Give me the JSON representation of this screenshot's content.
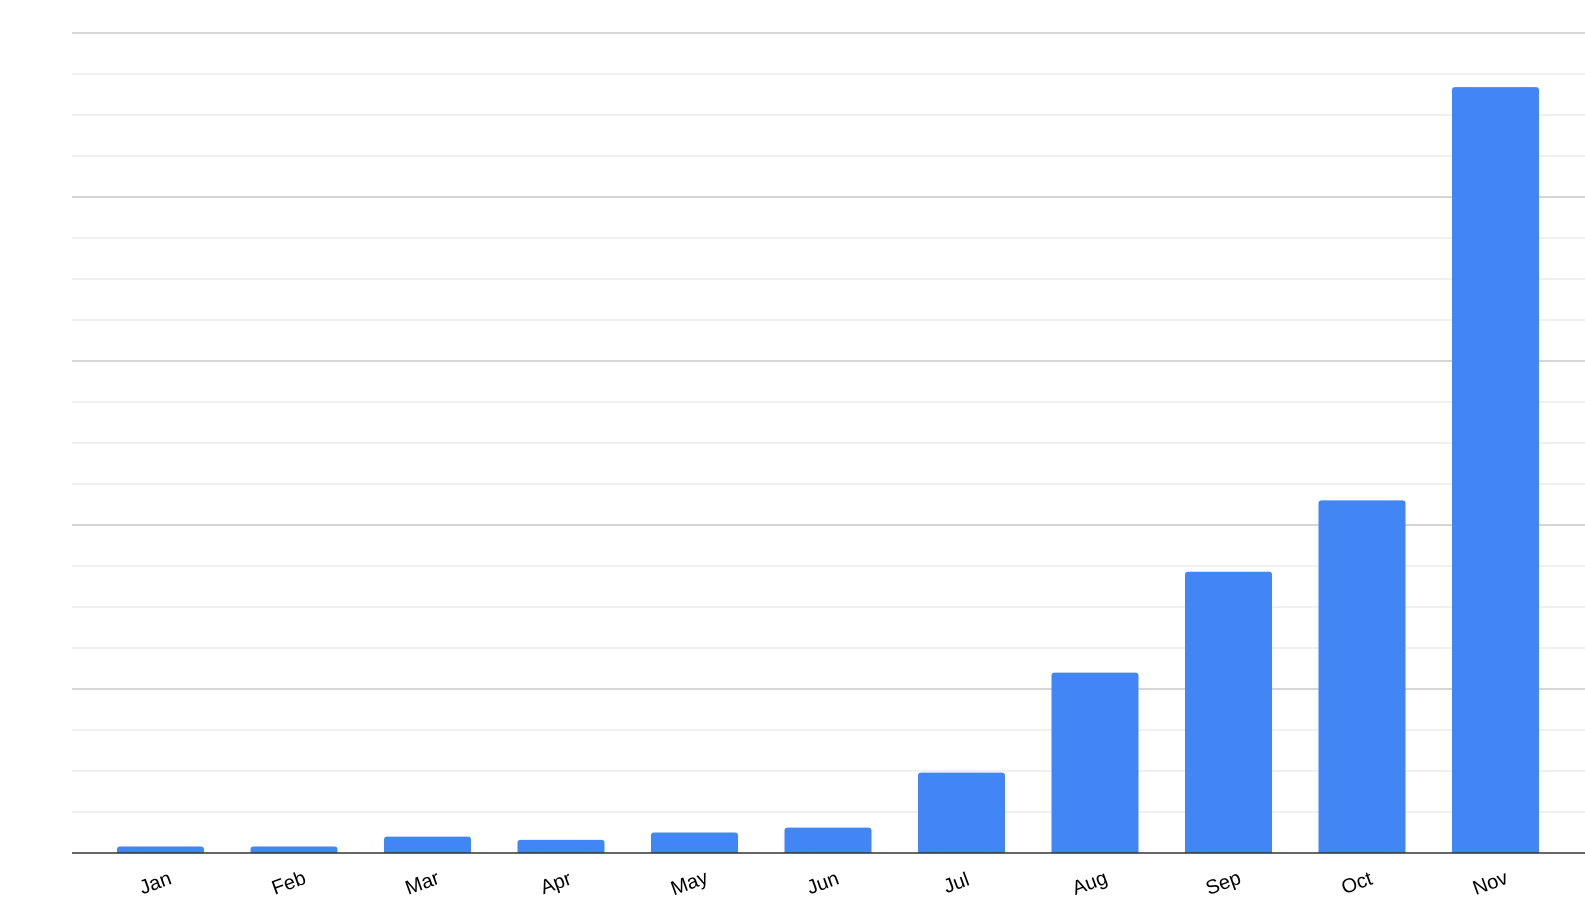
{
  "chart_data": {
    "type": "bar",
    "title": "",
    "xlabel": "",
    "ylabel": "",
    "categories": [
      "Jan",
      "Feb",
      "Mar",
      "Apr",
      "May",
      "Jun",
      "Jul",
      "Aug",
      "Sep",
      "Oct",
      "Nov"
    ],
    "values": [
      0.8,
      0.8,
      2.0,
      1.6,
      2.5,
      3.1,
      9.8,
      22.0,
      34.3,
      43.0,
      93.4
    ],
    "ylim": [
      0,
      100
    ],
    "gridlines": {
      "major_step": 20,
      "minor_step": 5
    },
    "grid": true,
    "y_tick_labels_shown": false,
    "legend": "none",
    "colors": {
      "bar": "#4285f4",
      "major_grid": "#c8c8c8",
      "minor_grid": "#e6e6e6",
      "axis": "#333333"
    }
  }
}
